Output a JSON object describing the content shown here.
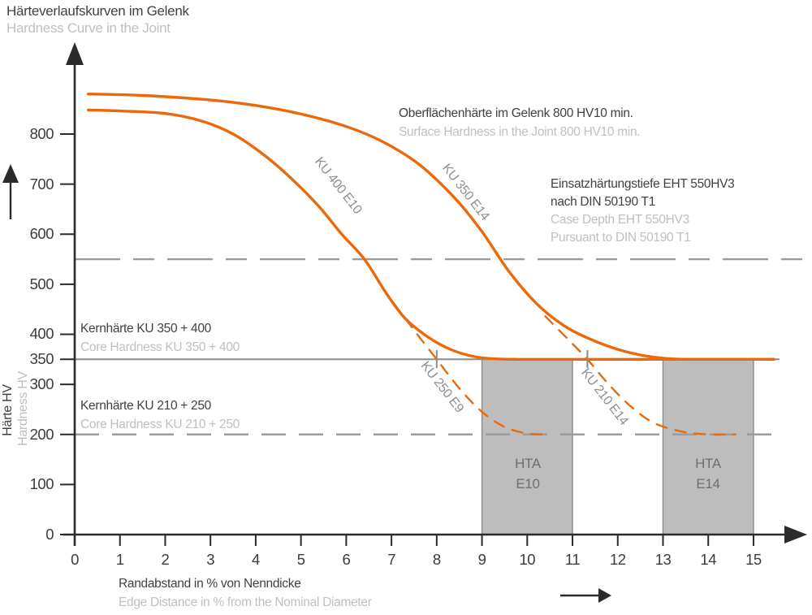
{
  "title": {
    "de": "Härteverlaufskurven im Gelenk",
    "en": "Hardness Curve in the Joint"
  },
  "colors": {
    "curve": "#EB6909",
    "axis": "#2B2B2B",
    "dark_text": "#414141",
    "light_text": "#C0C0C0",
    "ref_line": "#9C9C9C",
    "core_line": "#8C8C8C",
    "zone_fill": "#BDBDBD",
    "zone_border": "#909090",
    "zone_label": "#6E6E6E",
    "curve_label": "#8F8F8F",
    "tick_label": "#3C3C3C"
  },
  "y_axis": {
    "label_de": "Härte HV",
    "label_en": "Hardness HV",
    "ticks": [
      800,
      700,
      600,
      500,
      400,
      350,
      300,
      200,
      100,
      0
    ]
  },
  "x_axis": {
    "label_de": "Randabstand in % von Nenndicke",
    "label_en": "Edge Distance in % from the Nominal Diameter",
    "ticks": [
      0,
      1,
      2,
      3,
      4,
      5,
      6,
      7,
      8,
      9,
      10,
      11,
      12,
      13,
      14,
      15
    ]
  },
  "annotations": {
    "surface_hardness_de": "Oberflächenhärte im Gelenk 800 HV10 min.",
    "surface_hardness_en": "Surface Hardness in the Joint 800 HV10 min.",
    "case_depth_de_line1": "Einsatzhärtungstiefe EHT 550HV3",
    "case_depth_de_line2": "nach DIN 50190 T1",
    "case_depth_en_line1": "Case Depth EHT 550HV3",
    "case_depth_en_line2": "Pursuant to DIN 50190 T1",
    "core_hardness_350_de": "Kernhärte KU 350 + 400",
    "core_hardness_350_en": "Core Hardness KU 350 + 400",
    "core_hardness_210_de": "Kernhärte KU 210 + 250",
    "core_hardness_210_en": "Core Hardness KU 210 + 250"
  },
  "zones": [
    {
      "line1": "HTA",
      "line2": "E10",
      "x_from": 9,
      "x_to": 11
    },
    {
      "line1": "HTA",
      "line2": "E14",
      "x_from": 13,
      "x_to": 15
    }
  ],
  "chart_data": {
    "type": "line",
    "title": "Härteverlaufskurven im Gelenk / Hardness Curve in the Joint",
    "xlabel": "Randabstand in % von Nenndicke / Edge Distance in % from the Nominal Diameter",
    "ylabel": "Härte HV / Hardness HV",
    "x_range": [
      0,
      15.6
    ],
    "y_range": [
      0,
      950
    ],
    "grid": false,
    "legend_position": "inline-rotated-labels",
    "series": [
      {
        "name": "KU 400 E10",
        "style": "solid",
        "color": "#EB6909",
        "points": [
          [
            0.3,
            848
          ],
          [
            1,
            846
          ],
          [
            2,
            841
          ],
          [
            2.8,
            826
          ],
          [
            3.5,
            800
          ],
          [
            4.2,
            757
          ],
          [
            4.8,
            710
          ],
          [
            5.4,
            655
          ],
          [
            5.9,
            600
          ],
          [
            6.4,
            550
          ],
          [
            6.9,
            480
          ],
          [
            7.3,
            432
          ],
          [
            7.8,
            395
          ],
          [
            8.3,
            370
          ],
          [
            8.8,
            356
          ],
          [
            9.3,
            351
          ],
          [
            10,
            350
          ],
          [
            12.5,
            350
          ],
          [
            15.45,
            350
          ]
        ]
      },
      {
        "name": "KU 350 E14",
        "style": "solid",
        "color": "#EB6909",
        "points": [
          [
            0.3,
            880
          ],
          [
            1.5,
            877
          ],
          [
            3,
            868
          ],
          [
            4,
            857
          ],
          [
            5,
            840
          ],
          [
            6,
            815
          ],
          [
            6.8,
            785
          ],
          [
            7.6,
            740
          ],
          [
            8.4,
            672
          ],
          [
            9,
            605
          ],
          [
            9.6,
            525
          ],
          [
            10.2,
            462
          ],
          [
            10.8,
            418
          ],
          [
            11.4,
            390
          ],
          [
            12,
            370
          ],
          [
            12.6,
            357
          ],
          [
            13.2,
            351
          ],
          [
            13.8,
            350
          ],
          [
            15.45,
            350
          ]
        ]
      },
      {
        "name": "KU 250 E9",
        "style": "dashed",
        "color": "#EB6909",
        "points": [
          [
            7.05,
            462
          ],
          [
            7.5,
            408
          ],
          [
            8.0,
            350
          ],
          [
            8.5,
            292
          ],
          [
            9.0,
            245
          ],
          [
            9.5,
            215
          ],
          [
            10.0,
            202
          ],
          [
            10.45,
            200
          ]
        ]
      },
      {
        "name": "KU 210 E14",
        "style": "dashed",
        "color": "#EB6909",
        "points": [
          [
            10.4,
            436
          ],
          [
            10.9,
            390
          ],
          [
            11.33,
            350
          ],
          [
            11.8,
            300
          ],
          [
            12.3,
            255
          ],
          [
            12.8,
            223
          ],
          [
            13.4,
            206
          ],
          [
            14.0,
            200
          ],
          [
            14.6,
            200
          ]
        ]
      }
    ],
    "reference_lines": [
      {
        "label": "Einsatzhärtungstiefe EHT 550HV3 nach DIN 50190 T1",
        "value": 550,
        "style": "dash-dot"
      },
      {
        "label": "Kernhärte KU 350 + 400",
        "value": 350,
        "style": "solid"
      },
      {
        "label": "Kernhärte KU 210 + 250",
        "value": 200,
        "style": "dashed"
      }
    ],
    "crossing_ticks_at_350": [
      8.0,
      11.33
    ],
    "hta_zones": [
      {
        "label": "HTA E10",
        "x_from": 9,
        "x_to": 11,
        "y_from": 0,
        "y_to": 350
      },
      {
        "label": "HTA E14",
        "x_from": 13,
        "x_to": 15,
        "y_from": 0,
        "y_to": 350
      }
    ],
    "surface_hardness_min": "800 HV10 min."
  }
}
